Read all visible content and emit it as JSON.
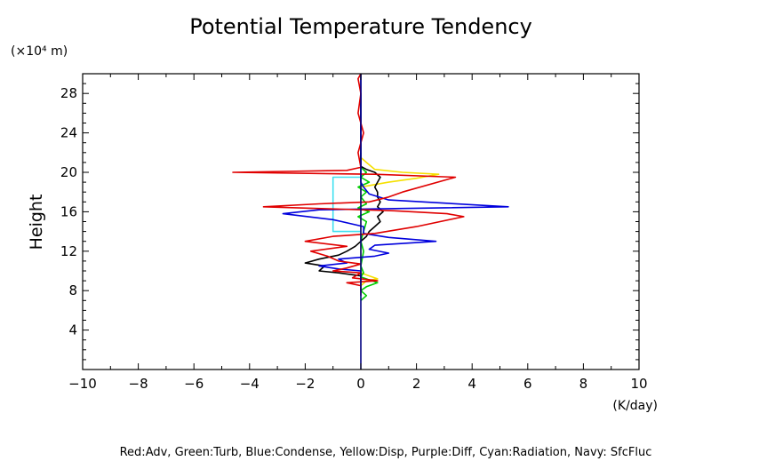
{
  "chart_data": {
    "type": "line",
    "title": "Potential Temperature Tendency",
    "ylabel": "Height",
    "y_unit_label": "(×10⁴ m)",
    "xlabel": "(K/day)",
    "footer_legend": "Red:Adv, Green:Turb, Blue:Condense, Yellow:Disp, Purple:Diff, Cyan:Radiation, Navy: SfcFluc",
    "xlim": [
      -10,
      10
    ],
    "ylim": [
      0,
      30
    ],
    "x_ticks": [
      -10,
      -8,
      -6,
      -4,
      -2,
      0,
      2,
      4,
      6,
      8,
      10
    ],
    "y_ticks": [
      4,
      8,
      12,
      16,
      20,
      24,
      28
    ],
    "legend_placement": "bottom",
    "grid": false,
    "colors": {
      "red": "#e00000",
      "green": "#00cc00",
      "blue": "#0000dd",
      "yellow": "#f5e000",
      "cyan": "#40e0f0",
      "navy": "#000080",
      "black": "#000000"
    },
    "series": [
      {
        "color_key": "yellow",
        "points": [
          [
            0,
            8.5
          ],
          [
            0.2,
            9.0
          ],
          [
            0.6,
            9.2
          ],
          [
            0.3,
            9.5
          ],
          [
            0,
            9.8
          ],
          [
            0,
            18.5
          ],
          [
            1.0,
            19.0
          ],
          [
            2.0,
            19.4
          ],
          [
            2.8,
            19.8
          ],
          [
            1.5,
            20.0
          ],
          [
            0.5,
            20.3
          ],
          [
            0.2,
            21.0
          ],
          [
            0,
            21.5
          ]
        ]
      },
      {
        "color_key": "green",
        "points": [
          [
            0,
            7.0
          ],
          [
            0.2,
            7.5
          ],
          [
            0,
            8.0
          ],
          [
            0.2,
            8.4
          ],
          [
            0.6,
            8.8
          ],
          [
            0.4,
            9.0
          ],
          [
            0,
            9.4
          ],
          [
            0.1,
            9.8
          ],
          [
            0,
            10.5
          ],
          [
            0.1,
            12.0
          ],
          [
            0,
            13.0
          ],
          [
            0.1,
            14.0
          ],
          [
            0.2,
            15.0
          ],
          [
            -0.1,
            15.5
          ],
          [
            0.3,
            16.0
          ],
          [
            -0.1,
            16.4
          ],
          [
            0.2,
            16.8
          ],
          [
            0,
            17.5
          ],
          [
            0.2,
            18.0
          ],
          [
            -0.1,
            18.5
          ],
          [
            0.3,
            19.0
          ],
          [
            0,
            19.5
          ],
          [
            0.2,
            20.0
          ],
          [
            0,
            20.5
          ],
          [
            0,
            22.0
          ]
        ]
      },
      {
        "color_key": "cyan",
        "points": [
          [
            0,
            14.0
          ],
          [
            -1.0,
            14.0
          ],
          [
            -1.0,
            19.5
          ],
          [
            0,
            19.5
          ]
        ]
      },
      {
        "color_key": "black",
        "points": [
          [
            0,
            8.0
          ],
          [
            0,
            9.5
          ],
          [
            -0.8,
            9.8
          ],
          [
            -1.5,
            10.0
          ],
          [
            -1.3,
            10.5
          ],
          [
            -2.0,
            10.8
          ],
          [
            -1.5,
            11.2
          ],
          [
            -0.8,
            11.6
          ],
          [
            -0.5,
            12.0
          ],
          [
            -0.2,
            12.5
          ],
          [
            0,
            13.0
          ],
          [
            0.2,
            13.5
          ],
          [
            0.3,
            14.0
          ],
          [
            0.5,
            14.5
          ],
          [
            0.7,
            15.0
          ],
          [
            0.6,
            15.5
          ],
          [
            0.8,
            16.0
          ],
          [
            0.6,
            16.5
          ],
          [
            0.7,
            17.0
          ],
          [
            0.6,
            17.5
          ],
          [
            0.6,
            18.0
          ],
          [
            0.5,
            18.5
          ],
          [
            0.6,
            19.0
          ],
          [
            0.7,
            19.5
          ],
          [
            0.5,
            20.0
          ],
          [
            0.2,
            20.3
          ],
          [
            0,
            20.6
          ],
          [
            0,
            28.0
          ]
        ]
      },
      {
        "color_key": "blue",
        "points": [
          [
            0,
            9.0
          ],
          [
            0,
            10.0
          ],
          [
            -0.8,
            10.2
          ],
          [
            -1.5,
            10.5
          ],
          [
            -0.5,
            10.8
          ],
          [
            -0.8,
            11.2
          ],
          [
            0.5,
            11.5
          ],
          [
            1.0,
            11.8
          ],
          [
            0.3,
            12.2
          ],
          [
            0.5,
            12.6
          ],
          [
            2.7,
            13.0
          ],
          [
            1.0,
            13.4
          ],
          [
            0.1,
            13.8
          ],
          [
            0.1,
            14.5
          ],
          [
            -1.0,
            15.2
          ],
          [
            -2.8,
            15.8
          ],
          [
            -1.5,
            16.2
          ],
          [
            5.3,
            16.5
          ],
          [
            1.0,
            17.2
          ],
          [
            0.3,
            17.8
          ],
          [
            0.1,
            18.5
          ],
          [
            0,
            19.0
          ],
          [
            0,
            30.0
          ]
        ]
      },
      {
        "color_key": "red",
        "points": [
          [
            0,
            7.5
          ],
          [
            0,
            8.5
          ],
          [
            -0.5,
            8.8
          ],
          [
            0.6,
            9.0
          ],
          [
            -0.3,
            9.3
          ],
          [
            0,
            9.8
          ],
          [
            -1.0,
            10.0
          ],
          [
            -0.5,
            10.3
          ],
          [
            0,
            10.7
          ],
          [
            -0.8,
            11.0
          ],
          [
            -1.2,
            11.5
          ],
          [
            -1.8,
            12.0
          ],
          [
            -0.5,
            12.5
          ],
          [
            -2.0,
            13.0
          ],
          [
            -1.0,
            13.5
          ],
          [
            0.5,
            13.8
          ],
          [
            2.0,
            14.5
          ],
          [
            3.7,
            15.5
          ],
          [
            3.1,
            15.8
          ],
          [
            1.2,
            16.1
          ],
          [
            -3.5,
            16.5
          ],
          [
            -1.5,
            16.8
          ],
          [
            0.3,
            17.0
          ],
          [
            1.0,
            17.5
          ],
          [
            1.5,
            18.0
          ],
          [
            3.4,
            19.5
          ],
          [
            0.5,
            19.8
          ],
          [
            -4.6,
            20.0
          ],
          [
            -0.5,
            20.2
          ],
          [
            0,
            20.5
          ],
          [
            -0.1,
            22.0
          ],
          [
            0.1,
            24.0
          ],
          [
            -0.1,
            26.0
          ],
          [
            0,
            28.0
          ],
          [
            -0.1,
            29.5
          ],
          [
            0,
            30.0
          ]
        ]
      },
      {
        "color_key": "navy",
        "points": [
          [
            0,
            0
          ],
          [
            0,
            30.0
          ]
        ]
      }
    ]
  }
}
